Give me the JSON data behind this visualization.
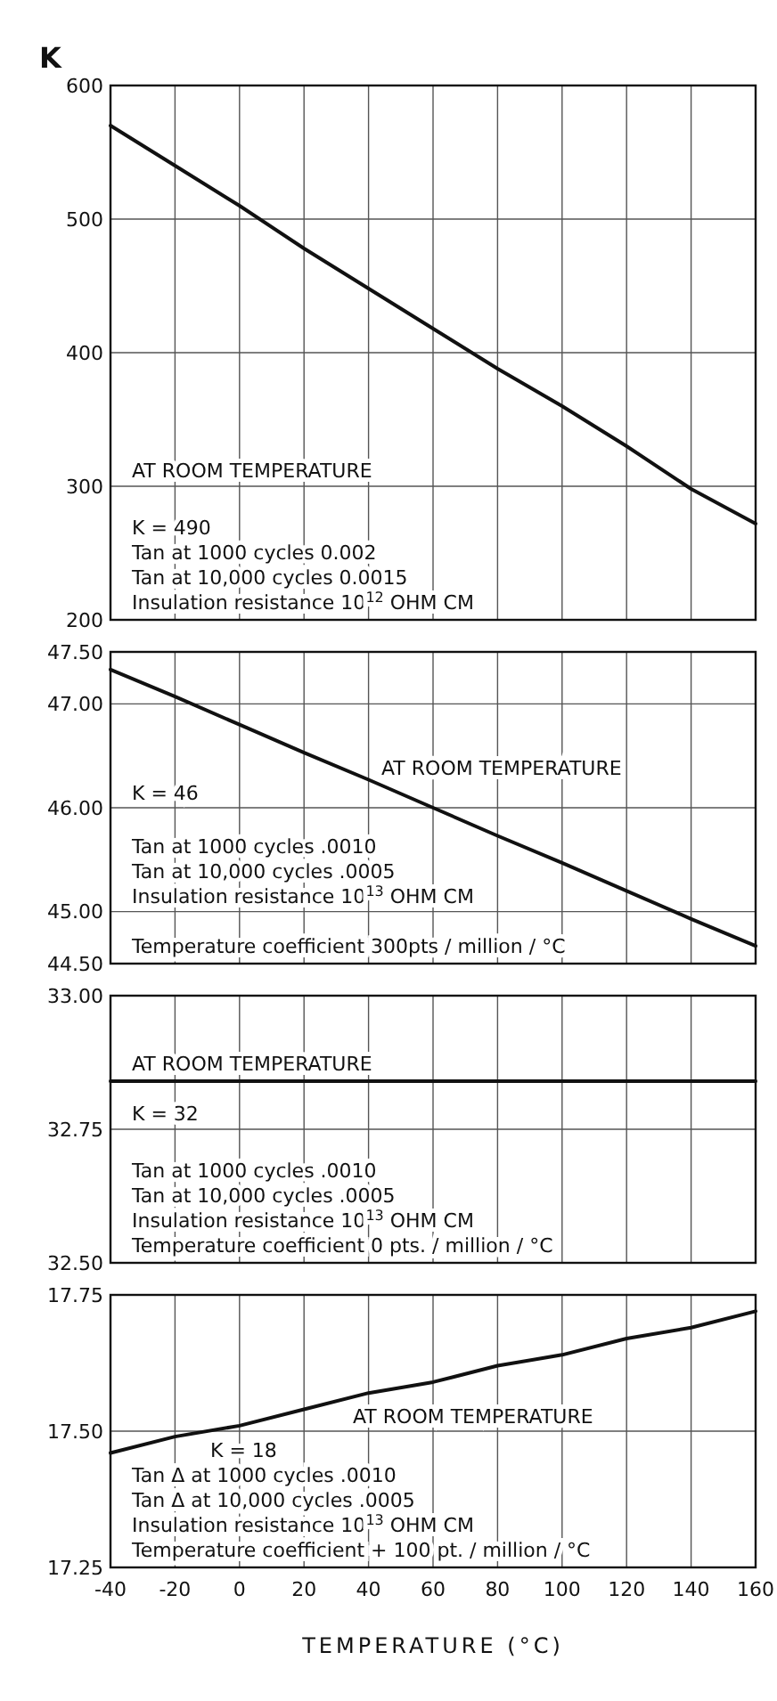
{
  "chart_data": [
    {
      "type": "line",
      "ylabel": "K",
      "x": [
        -40,
        -20,
        0,
        20,
        40,
        60,
        80,
        100,
        120,
        140,
        160
      ],
      "values": [
        570,
        540,
        510,
        478,
        448,
        418,
        388,
        360,
        330,
        298,
        272
      ],
      "color": "#111111",
      "xlim": [
        -40,
        160
      ],
      "xticks": [
        -40,
        -20,
        0,
        20,
        40,
        60,
        80,
        100,
        120,
        140,
        160
      ],
      "ylim": [
        200,
        600
      ],
      "yticks": [
        200,
        300,
        400,
        500,
        600
      ],
      "grid": true,
      "tick_labels": "y",
      "annotations": [
        "AT ROOM TEMPERATURE",
        "K = 490",
        "Tan  at 1000 cycles 0.002",
        "Tan  at 10,000 cycles 0.0015",
        "Insulation resistance 10$^{12}$ OHM CM"
      ]
    },
    {
      "type": "line",
      "x": [
        -40,
        -20,
        0,
        20,
        40,
        60,
        80,
        100,
        120,
        140,
        160
      ],
      "values": [
        47.33,
        47.07,
        46.8,
        46.53,
        46.27,
        46.0,
        45.73,
        45.47,
        45.2,
        44.93,
        44.67
      ],
      "color": "#111111",
      "xlim": [
        -40,
        160
      ],
      "xticks": [
        -40,
        -20,
        0,
        20,
        40,
        60,
        80,
        100,
        120,
        140,
        160
      ],
      "ylim": [
        44.5,
        47.5
      ],
      "yticks": [
        {
          "value": 44.5,
          "label": "44.50"
        },
        {
          "value": 45,
          "label": "45.00"
        },
        {
          "value": 46,
          "label": "46.00"
        },
        {
          "value": 47,
          "label": "47.00"
        },
        {
          "value": 47.5,
          "label": "47.50"
        }
      ],
      "grid": true,
      "tick_labels": "y",
      "annotations": [
        "AT ROOM TEMPERATURE",
        "K = 46",
        "Tan  at 1000 cycles .0010",
        "Tan  at 10,000 cycles .0005",
        "Insulation resistance 10$^{13}$ OHM CM",
        "Temperature coefficient 300pts / million / °C"
      ]
    },
    {
      "type": "line",
      "x": [
        -40,
        160
      ],
      "values": [
        32.84,
        32.84
      ],
      "color": "#111111",
      "xlim": [
        -40,
        160
      ],
      "xticks": [
        -40,
        -20,
        0,
        20,
        40,
        60,
        80,
        100,
        120,
        140,
        160
      ],
      "ylim": [
        32.5,
        33
      ],
      "yticks": [
        {
          "value": 32.5,
          "label": "32.50"
        },
        {
          "value": 32.75,
          "label": "32.75"
        },
        {
          "value": 33,
          "label": "33.00"
        }
      ],
      "grid": true,
      "tick_labels": "y",
      "annotations": [
        "AT ROOM TEMPERATURE",
        "K = 32",
        "Tan  at 1000 cycles .0010",
        "Tan  at 10,000 cycles .0005",
        "Insulation resistance 10$^{13}$ OHM CM",
        "Temperature coefficient  0 pts. / million / °C"
      ]
    },
    {
      "type": "line",
      "xlabel": "TEMPERATURE (°C)",
      "x": [
        -40,
        -20,
        0,
        20,
        40,
        60,
        80,
        100,
        120,
        140,
        160
      ],
      "values": [
        17.46,
        17.49,
        17.51,
        17.54,
        17.57,
        17.59,
        17.62,
        17.64,
        17.67,
        17.69,
        17.72
      ],
      "color": "#111111",
      "xlim": [
        -40,
        160
      ],
      "xticks": [
        -40,
        -20,
        0,
        20,
        40,
        60,
        80,
        100,
        120,
        140,
        160
      ],
      "ylim": [
        17.25,
        17.75
      ],
      "yticks": [
        17.25,
        {
          "value": 17.5,
          "label": "17.50"
        },
        17.75
      ],
      "grid": true,
      "annotations": [
        "AT ROOM TEMPERATURE",
        "K = 18",
        "Tan Δ at 1000 cycles .0010",
        "Tan Δ at 10,000 cycles .0005",
        "Insulation resistance 10$^{13}$ OHM CM",
        "Temperature coefficient + 100 pt. / million / °C"
      ]
    }
  ]
}
